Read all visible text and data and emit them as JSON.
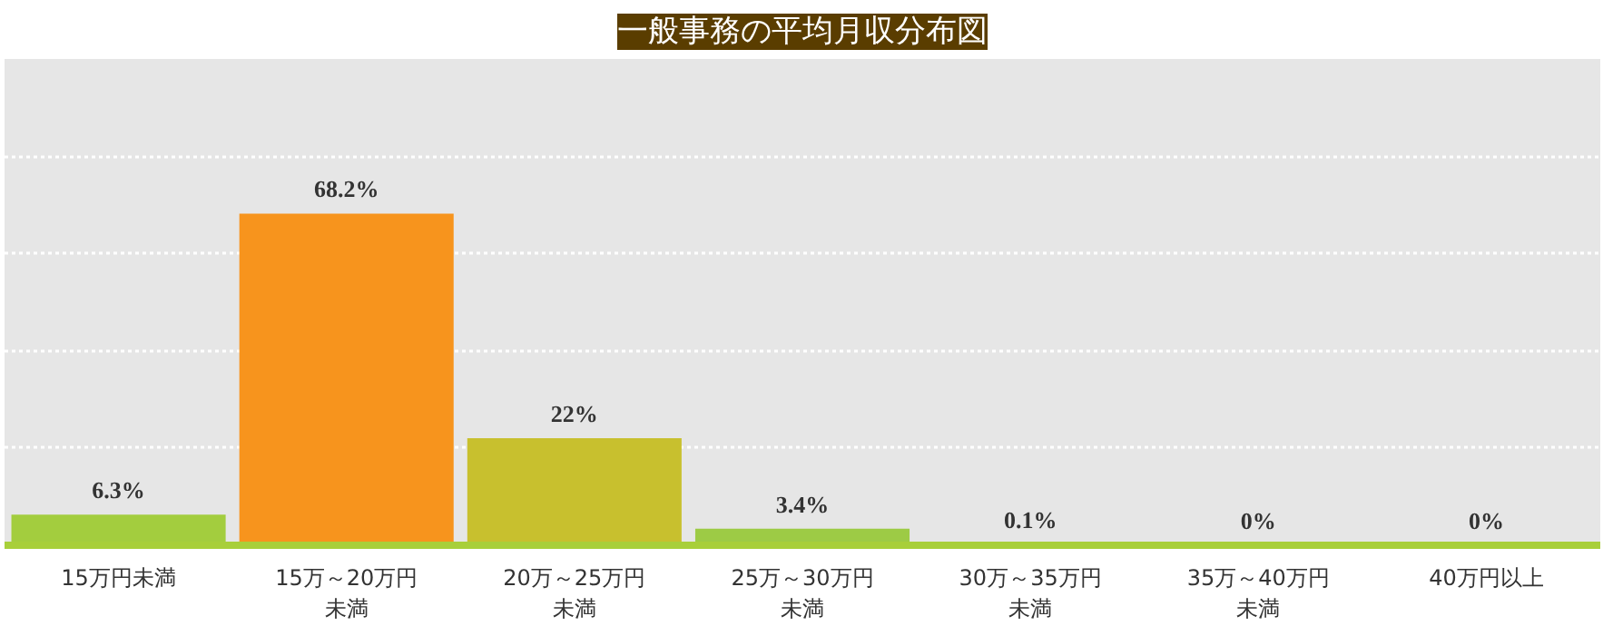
{
  "chart_data": {
    "type": "bar",
    "title": "一般事務の平均月収分布図",
    "categories": [
      "15万円未満",
      "15万～20万円未満",
      "20万～25万円未満",
      "25万～30万円未満",
      "30万～35万円未満",
      "35万～40万円未満",
      "40万円以上"
    ],
    "values": [
      6.3,
      68.2,
      22,
      3.4,
      0.1,
      0,
      0
    ],
    "colors": [
      "#a3cd3e",
      "#f7941d",
      "#c8c02e",
      "#9dcb45",
      "#9dcb45",
      "#9dcb45",
      "#9dcb45"
    ],
    "value_labels": [
      "6.3%",
      "68.2%",
      "22%",
      "3.4%",
      "0.1%",
      "0%",
      "0%"
    ],
    "ylim": [
      0,
      100
    ],
    "yticks": [
      {
        "value": 20,
        "label": null
      },
      {
        "value": 40,
        "label": null
      },
      {
        "value": 60,
        "label": null
      },
      {
        "value": 80,
        "label": null
      }
    ],
    "tick_labels": "x",
    "grid": "y"
  }
}
